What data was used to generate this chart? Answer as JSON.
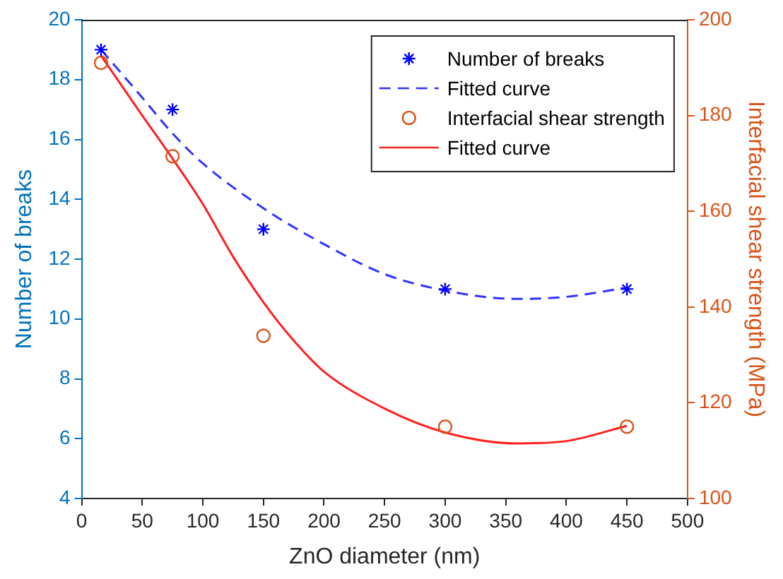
{
  "chart_data": {
    "type": "scatter",
    "xlabel": "ZnO diameter (nm)",
    "ylabel": "Number of breaks",
    "y2label": "Interfacial shear strength (MPa)",
    "xlim": [
      0,
      500
    ],
    "xticks": [
      0,
      50,
      100,
      150,
      200,
      250,
      300,
      350,
      400,
      450,
      500
    ],
    "ylim": [
      4,
      20
    ],
    "yticks": [
      4,
      6,
      8,
      10,
      12,
      14,
      16,
      18,
      20
    ],
    "y2lim": [
      100,
      200
    ],
    "y2ticks": [
      100,
      120,
      140,
      160,
      180,
      200
    ],
    "legend": "top right",
    "grid": false,
    "series": [
      {
        "name": "Number of breaks",
        "type": "scatter",
        "marker": "cross",
        "color": "#0000ff",
        "x": [
          16,
          75,
          150,
          300,
          450
        ],
        "values": [
          19,
          17,
          13,
          11,
          11
        ]
      },
      {
        "name": "Fitted curve",
        "type": "line",
        "marker": "none",
        "line_style": "dashed",
        "color": "#3333ff",
        "x": [
          16,
          50,
          75,
          100,
          150,
          200,
          250,
          300,
          360,
          400,
          450
        ],
        "values": [
          19,
          17.4,
          16.2,
          15.2,
          13.7,
          12.5,
          11.5,
          10.95,
          10.67,
          10.74,
          11.05
        ]
      },
      {
        "name": "Interfacial shear strength",
        "type": "scatter",
        "axis": "y2",
        "marker": "circle",
        "color": "#d95319",
        "x": [
          16,
          75,
          150,
          300,
          450
        ],
        "values": [
          191,
          171.5,
          134,
          115,
          115
        ]
      },
      {
        "name": "Fitted curve",
        "type": "line",
        "axis": "y2",
        "marker": "none",
        "line_style": "solid",
        "color": "#ff2020",
        "x": [
          16,
          50,
          75,
          100,
          125,
          150,
          175,
          200,
          250,
          300,
          360,
          400,
          450
        ],
        "values": [
          192.5,
          180,
          171,
          161.5,
          150.5,
          141,
          133,
          126.5,
          118.8,
          113.8,
          111.5,
          112,
          115.2
        ]
      }
    ]
  }
}
